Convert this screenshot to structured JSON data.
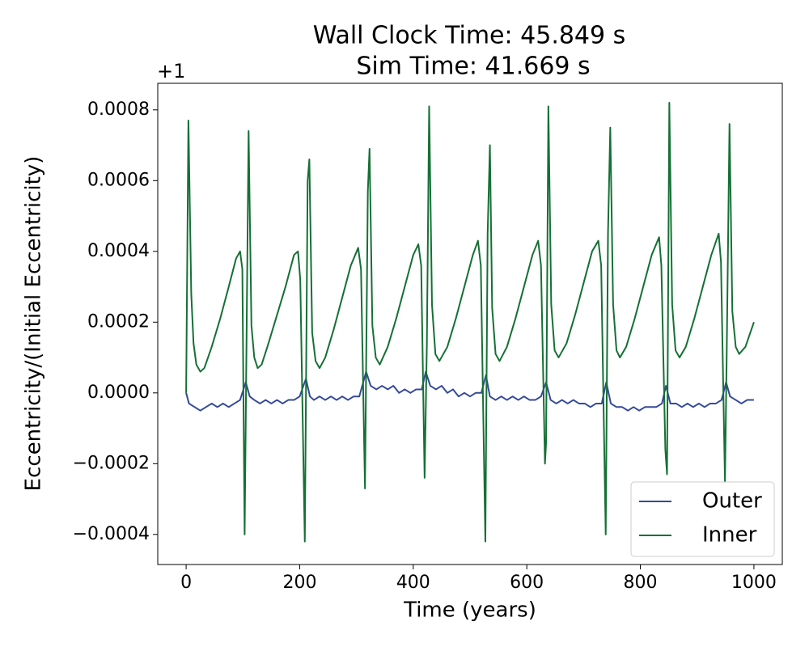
{
  "chart_data": {
    "type": "line",
    "title": [
      "Wall Clock Time: 45.849 s",
      "Sim Time: 41.669 s"
    ],
    "x_label": "Time (years)",
    "y_label": "Eccentricity/(Initial Eccentricity)",
    "y_offset_text": "+1",
    "xlim": [
      -50,
      1050
    ],
    "ylim": [
      -0.000485,
      0.000875
    ],
    "xticks": [
      0,
      200,
      400,
      600,
      800,
      1000
    ],
    "yticks": [
      {
        "value": -0.0004,
        "label": "−0.0004"
      },
      {
        "value": -0.0002,
        "label": "−0.0002"
      },
      {
        "value": 0,
        "label": "0.0000"
      },
      0.0002,
      0.0004,
      0.0006,
      0.0008
    ],
    "legend": "lower right",
    "series": [
      {
        "name": "Outer",
        "color": "#34499a",
        "x": [
          0,
          5,
          15,
          25,
          35,
          45,
          55,
          65,
          75,
          85,
          95,
          105,
          112,
          120,
          130,
          140,
          150,
          160,
          170,
          180,
          190,
          200,
          211,
          218,
          225,
          235,
          245,
          255,
          265,
          275,
          285,
          295,
          305,
          317,
          325,
          335,
          345,
          355,
          365,
          375,
          385,
          395,
          405,
          415,
          422,
          430,
          440,
          450,
          460,
          470,
          480,
          490,
          500,
          510,
          520,
          528,
          535,
          545,
          555,
          565,
          575,
          585,
          595,
          605,
          615,
          625,
          634,
          642,
          652,
          662,
          672,
          682,
          692,
          702,
          712,
          722,
          732,
          740,
          748,
          758,
          768,
          778,
          788,
          798,
          808,
          818,
          828,
          838,
          845,
          853,
          863,
          873,
          883,
          893,
          903,
          913,
          923,
          933,
          943,
          951,
          958,
          968,
          978,
          988,
          1000
        ],
        "values": [
          0,
          -3e-05,
          -4e-05,
          -5e-05,
          -4e-05,
          -3e-05,
          -4e-05,
          -3e-05,
          -4e-05,
          -3e-05,
          -2e-05,
          3e-05,
          -1e-05,
          -2e-05,
          -3e-05,
          -2e-05,
          -3e-05,
          -2e-05,
          -3e-05,
          -2e-05,
          -2e-05,
          -1e-05,
          4e-05,
          -1e-05,
          -2e-05,
          -1e-05,
          -2e-05,
          -1e-05,
          -2e-05,
          -1e-05,
          -2e-05,
          -1e-05,
          -1e-05,
          6e-05,
          2e-05,
          1e-05,
          2e-05,
          1e-05,
          2e-05,
          0,
          1e-05,
          0,
          1e-05,
          1e-05,
          6e-05,
          2e-05,
          1e-05,
          2e-05,
          0,
          1e-05,
          -1e-05,
          0,
          -1e-05,
          0,
          0,
          5e-05,
          -1e-05,
          -2e-05,
          -1e-05,
          -2e-05,
          -1e-05,
          -2e-05,
          -1e-05,
          -2e-05,
          -2e-05,
          -1e-05,
          3e-05,
          -2e-05,
          -3e-05,
          -2e-05,
          -3e-05,
          -2e-05,
          -3e-05,
          -3e-05,
          -4e-05,
          -3e-05,
          -3e-05,
          3e-05,
          -3e-05,
          -4e-05,
          -4e-05,
          -5e-05,
          -4e-05,
          -5e-05,
          -4e-05,
          -4e-05,
          -4e-05,
          -3e-05,
          2e-05,
          -3e-05,
          -3e-05,
          -4e-05,
          -3e-05,
          -4e-05,
          -3e-05,
          -4e-05,
          -3e-05,
          -3e-05,
          -2e-05,
          3e-05,
          -1e-05,
          -2e-05,
          -3e-05,
          -2e-05,
          -2e-05
        ]
      },
      {
        "name": "Inner",
        "color": "#157035",
        "x": [
          0,
          4,
          9,
          13,
          18,
          25,
          32,
          45,
          60,
          75,
          88,
          95,
          99,
          103,
          110,
          115,
          120,
          126,
          133,
          145,
          160,
          175,
          190,
          197,
          201,
          209,
          214,
          217,
          222,
          228,
          235,
          245,
          260,
          275,
          290,
          303,
          308,
          315,
          320,
          323,
          328,
          334,
          341,
          355,
          370,
          385,
          400,
          409,
          414,
          420,
          424,
          428,
          433,
          439,
          446,
          460,
          475,
          490,
          505,
          514,
          519,
          527,
          531,
          535,
          539,
          545,
          552,
          565,
          580,
          595,
          610,
          620,
          625,
          632,
          634,
          638,
          643,
          649,
          656,
          670,
          685,
          700,
          715,
          726,
          731,
          739,
          743,
          747,
          752,
          758,
          764,
          775,
          790,
          805,
          820,
          833,
          837,
          844,
          847,
          851,
          856,
          862,
          869,
          880,
          895,
          910,
          925,
          938,
          942,
          949,
          952,
          957,
          962,
          968,
          974,
          985,
          1000
        ],
        "values": [
          0,
          0.00077,
          0.00028,
          0.00014,
          8e-05,
          6e-05,
          7e-05,
          0.00013,
          0.00021,
          0.0003,
          0.00038,
          0.0004,
          0.00035,
          -0.0004,
          0.00074,
          0.00019,
          0.0001,
          7e-05,
          8e-05,
          0.00014,
          0.00022,
          0.0003,
          0.00039,
          0.0004,
          0.00032,
          -0.00042,
          0.0006,
          0.00066,
          0.00017,
          9e-05,
          7e-05,
          0.0001,
          0.00018,
          0.00027,
          0.00036,
          0.00041,
          0.00035,
          -0.00027,
          0.00057,
          0.00069,
          0.00019,
          0.0001,
          8e-05,
          0.00013,
          0.00021,
          0.0003,
          0.00039,
          0.00042,
          0.00036,
          -0.00024,
          0.00014,
          0.00081,
          0.00025,
          0.00011,
          9e-05,
          0.00013,
          0.00021,
          0.0003,
          0.00039,
          0.00043,
          0.00036,
          -0.00042,
          0.00045,
          0.0007,
          0.00024,
          0.00011,
          9e-05,
          0.00013,
          0.00021,
          0.0003,
          0.00039,
          0.00043,
          0.00036,
          -0.0002,
          -0.00014,
          0.00081,
          0.00025,
          0.00012,
          0.0001,
          0.00014,
          0.00022,
          0.00031,
          0.0004,
          0.00043,
          0.00036,
          -0.0004,
          0.00045,
          0.00075,
          0.00025,
          0.00012,
          0.0001,
          0.00013,
          0.00021,
          0.0003,
          0.00039,
          0.00044,
          0.00036,
          -0.00016,
          -0.00023,
          0.00082,
          0.00025,
          0.00012,
          0.0001,
          0.00013,
          0.00021,
          0.0003,
          0.00039,
          0.00045,
          0.00037,
          -0.00025,
          0.0001,
          0.00076,
          0.00023,
          0.00013,
          0.00011,
          0.00013,
          0.0002
        ]
      }
    ]
  }
}
